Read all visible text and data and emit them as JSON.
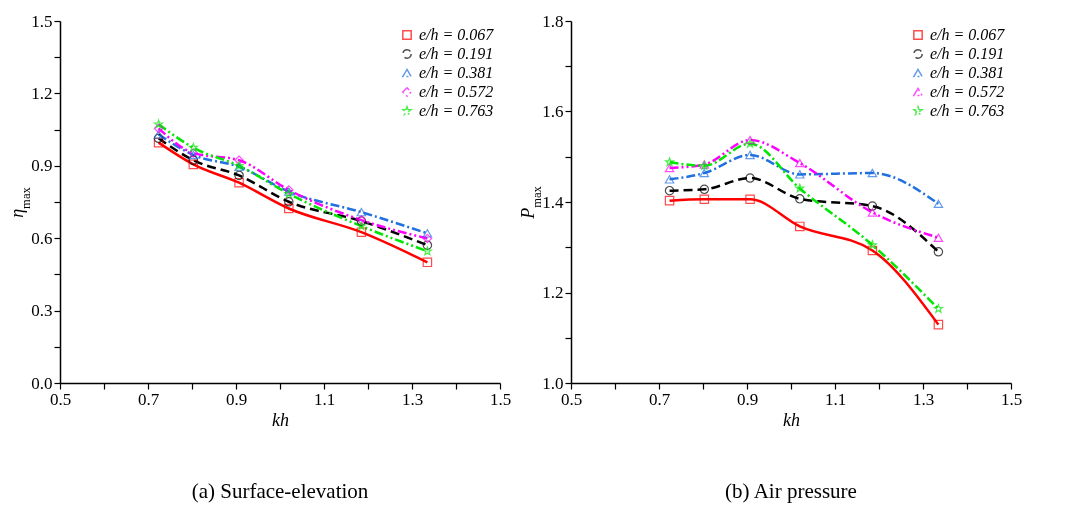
{
  "chart_data": [
    {
      "type": "line",
      "title": "(a) Surface-elevation",
      "xlabel": "kh",
      "ylabel": "η$_{max}$",
      "x": [
        0.724,
        0.803,
        0.907,
        1.02,
        1.185,
        1.335
      ],
      "series": [
        {
          "name": "e/h = 0.067",
          "color": "#ff0000",
          "marker": "square",
          "line_style": "solid",
          "values": [
            0.996,
            0.906,
            0.83,
            0.723,
            0.625,
            0.5
          ]
        },
        {
          "name": "e/h = 0.191",
          "color": "#000000",
          "marker": "circle",
          "line_style": "dashed",
          "values": [
            1.014,
            0.923,
            0.86,
            0.751,
            0.671,
            0.571
          ]
        },
        {
          "name": "e/h = 0.381",
          "color": "#2070e0",
          "marker": "triangle",
          "line_style": "dashdot",
          "values": [
            1.03,
            0.945,
            0.896,
            0.793,
            0.708,
            0.62
          ]
        },
        {
          "name": "e/h = 0.572",
          "color": "#ff00ff",
          "marker": "diamond",
          "line_style": "dashdotdot",
          "values": [
            1.055,
            0.953,
            0.923,
            0.8,
            0.675,
            0.599
          ]
        },
        {
          "name": "e/h = 0.763",
          "color": "#00e600",
          "marker": "star",
          "line_style": "dashdotdot",
          "values": [
            1.072,
            0.975,
            0.9,
            0.784,
            0.65,
            0.546
          ]
        }
      ],
      "xlim": [
        0.5,
        1.5
      ],
      "xticks": [
        0.5,
        {
          "value": 0.6,
          "label": null
        },
        0.7,
        {
          "value": 0.8,
          "label": null
        },
        0.9,
        {
          "value": 1.0,
          "label": null
        },
        1.1,
        {
          "value": 1.2,
          "label": null
        },
        1.3,
        {
          "value": 1.4,
          "label": null
        },
        1.5
      ],
      "ylim": [
        0,
        1.5
      ],
      "yticks": [
        {
          "value": 0,
          "label": "0.0"
        },
        {
          "value": 0.15,
          "label": null
        },
        0.3,
        {
          "value": 0.45,
          "label": null
        },
        0.6,
        {
          "value": 0.75,
          "label": null
        },
        0.9,
        {
          "value": 1.05,
          "label": null
        },
        1.2,
        {
          "value": 1.35,
          "label": null
        },
        1.5
      ],
      "legend": "top right",
      "grid": false
    },
    {
      "type": "line",
      "title": "(b) Air pressure",
      "xlabel": "kh",
      "ylabel": "P$_{max}$",
      "x": [
        0.724,
        0.803,
        0.907,
        1.02,
        1.185,
        1.335
      ],
      "series": [
        {
          "name": "e/h = 0.067",
          "color": "#ff0000",
          "marker": "square",
          "line_style": "solid",
          "values": [
            1.403,
            1.406,
            1.406,
            1.346,
            1.293,
            1.129
          ]
        },
        {
          "name": "e/h = 0.191",
          "color": "#000000",
          "marker": "circle",
          "line_style": "dashed",
          "values": [
            1.425,
            1.428,
            1.453,
            1.407,
            1.391,
            1.29
          ]
        },
        {
          "name": "e/h = 0.381",
          "color": "#2070e0",
          "marker": "triangle",
          "line_style": "dashdot",
          "values": [
            1.45,
            1.464,
            1.504,
            1.461,
            1.464,
            1.396
          ]
        },
        {
          "name": "e/h = 0.572",
          "color": "#ff00ff",
          "marker": "triangle",
          "line_style": "dashdotdot",
          "values": [
            1.475,
            1.483,
            1.537,
            1.486,
            1.377,
            1.321
          ]
        },
        {
          "name": "e/h = 0.763",
          "color": "#00e600",
          "marker": "star",
          "line_style": "dashdot",
          "values": [
            1.488,
            1.48,
            1.529,
            1.43,
            1.305,
            1.164
          ]
        }
      ],
      "xlim": [
        0.5,
        1.5
      ],
      "xticks": [
        0.5,
        {
          "value": 0.6,
          "label": null
        },
        0.7,
        {
          "value": 0.8,
          "label": null
        },
        0.9,
        {
          "value": 1.0,
          "label": null
        },
        1.1,
        {
          "value": 1.2,
          "label": null
        },
        1.3,
        {
          "value": 1.4,
          "label": null
        },
        1.5
      ],
      "ylim": [
        1.0,
        1.8
      ],
      "yticks": [
        {
          "value": 1.0,
          "label": "1.0"
        },
        {
          "value": 1.1,
          "label": null
        },
        1.2,
        {
          "value": 1.3,
          "label": null
        },
        1.4,
        {
          "value": 1.5,
          "label": null
        },
        1.6,
        {
          "value": 1.7,
          "label": null
        },
        1.8
      ],
      "legend": "top right",
      "grid": false
    }
  ]
}
